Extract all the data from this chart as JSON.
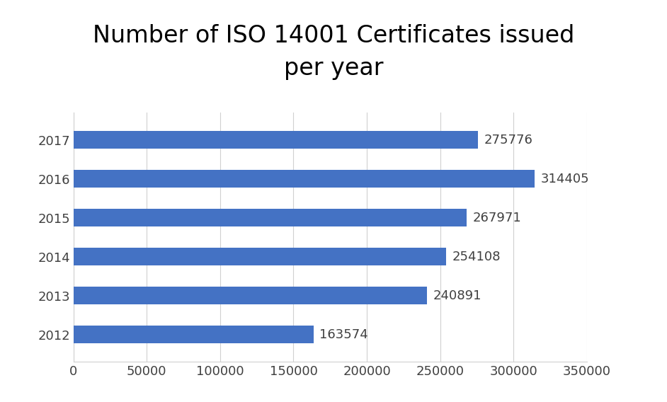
{
  "title": "Number of ISO 14001 Certificates issued\nper year",
  "years": [
    "2012",
    "2013",
    "2014",
    "2015",
    "2016",
    "2017"
  ],
  "values": [
    163574,
    240891,
    254108,
    267971,
    314405,
    275776
  ],
  "bar_color": "#4472C4",
  "xlim": [
    0,
    350000
  ],
  "xticks": [
    0,
    50000,
    100000,
    150000,
    200000,
    250000,
    300000,
    350000
  ],
  "title_fontsize": 24,
  "tick_fontsize": 13,
  "label_fontsize": 13,
  "background_color": "#ffffff",
  "grid_color": "#d0d0d0"
}
